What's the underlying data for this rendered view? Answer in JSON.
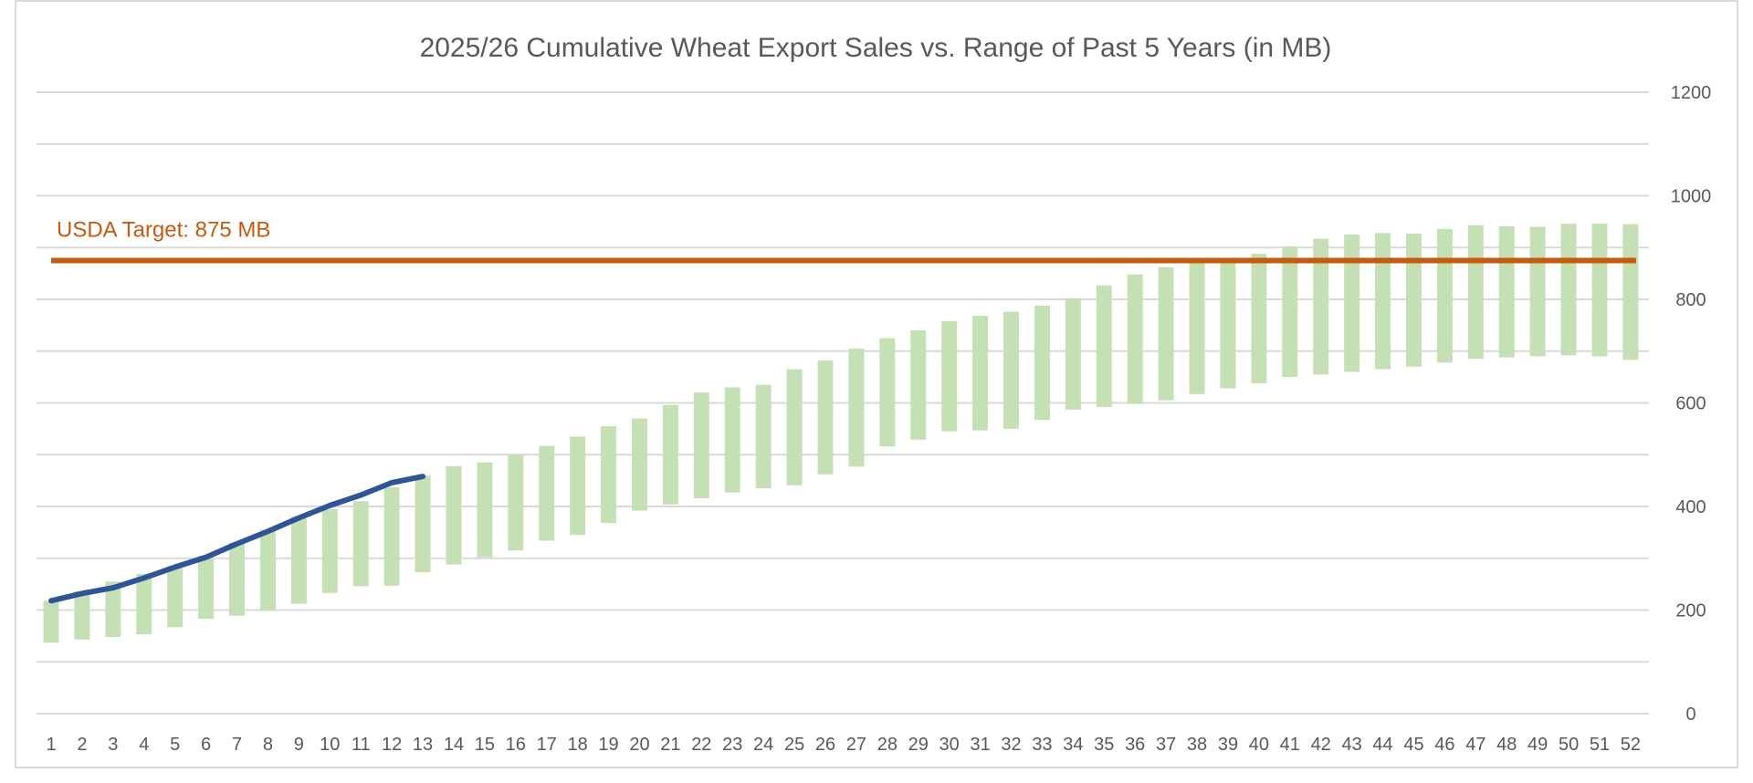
{
  "chart_data": {
    "type": "bar",
    "title": "2025/26 Cumulative Wheat Export Sales vs. Range of Past 5 Years (in MB)",
    "xlabel": "",
    "ylabel": "",
    "ylim": [
      0,
      1200
    ],
    "y_ticks": [
      0,
      200,
      400,
      600,
      800,
      1000,
      1200
    ],
    "y_axis_side": "right",
    "grid": true,
    "gridline_step": 100,
    "legend": "none",
    "categories": [
      "1",
      "2",
      "3",
      "4",
      "5",
      "6",
      "7",
      "8",
      "9",
      "10",
      "11",
      "12",
      "13",
      "14",
      "15",
      "16",
      "17",
      "18",
      "19",
      "20",
      "21",
      "22",
      "23",
      "24",
      "25",
      "26",
      "27",
      "28",
      "29",
      "30",
      "31",
      "32",
      "33",
      "34",
      "35",
      "36",
      "37",
      "38",
      "39",
      "40",
      "41",
      "42",
      "43",
      "44",
      "45",
      "46",
      "47",
      "48",
      "49",
      "50",
      "51",
      "52"
    ],
    "series": [
      {
        "type": "range_bar",
        "color": "#c5e0b4",
        "low": [
          137,
          143,
          148,
          153,
          167,
          183,
          189,
          199,
          212,
          233,
          246,
          247,
          273,
          288,
          302,
          315,
          334,
          345,
          368,
          392,
          404,
          416,
          427,
          435,
          441,
          462,
          477,
          516,
          529,
          545,
          547,
          550,
          567,
          587,
          592,
          598,
          605,
          617,
          628,
          638,
          650,
          655,
          660,
          665,
          670,
          678,
          685,
          688,
          690,
          692,
          690,
          683
        ],
        "high": [
          218,
          236,
          255,
          270,
          285,
          305,
          330,
          355,
          380,
          395,
          410,
          437,
          460,
          478,
          485,
          500,
          517,
          535,
          555,
          570,
          596,
          620,
          630,
          635,
          665,
          682,
          705,
          725,
          740,
          758,
          768,
          776,
          788,
          802,
          827,
          848,
          862,
          870,
          880,
          888,
          902,
          917,
          925,
          928,
          927,
          936,
          943,
          941,
          940,
          946,
          946,
          945
        ]
      },
      {
        "type": "line",
        "color": "#2f5597",
        "x": [
          "1",
          "2",
          "3",
          "4",
          "5",
          "6",
          "7",
          "8",
          "9",
          "10",
          "11",
          "12",
          "13"
        ],
        "values": [
          218,
          232,
          243,
          262,
          283,
          302,
          328,
          352,
          378,
          402,
          422,
          446,
          458
        ]
      }
    ],
    "reference_line": {
      "value": 875,
      "color": "#c55a11",
      "label": "USDA Target: 875 MB"
    }
  }
}
